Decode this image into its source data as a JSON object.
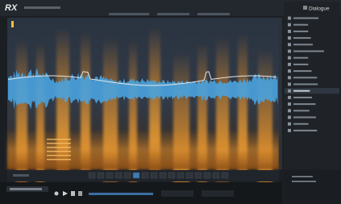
{
  "app": {
    "logo": "RX"
  },
  "panel": {
    "title": "Dialogue"
  }
}
